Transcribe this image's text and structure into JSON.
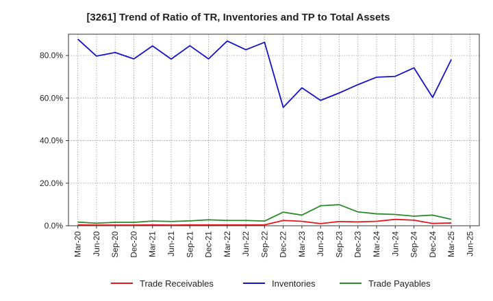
{
  "chart_data": {
    "type": "line",
    "title": "[3261]  Trend of Ratio of TR, Inventories and TP to Total Assets",
    "xlabel": "",
    "ylabel": "",
    "ylim": [
      0,
      90
    ],
    "y_ticks": [
      0,
      20,
      40,
      60,
      80
    ],
    "y_tick_labels": [
      "0.0%",
      "20.0%",
      "40.0%",
      "60.0%",
      "80.0%"
    ],
    "x_tick_labels": [
      "Mar-20",
      "Jun-20",
      "Sep-20",
      "Dec-20",
      "Mar-21",
      "Jun-21",
      "Sep-21",
      "Dec-21",
      "Mar-22",
      "Jun-22",
      "Sep-22",
      "Dec-22",
      "Mar-23",
      "Jun-23",
      "Sep-23",
      "Dec-23",
      "Mar-24",
      "Jun-24",
      "Sep-24",
      "Dec-24",
      "Mar-25",
      "Jun-25"
    ],
    "categories": [
      "Mar-20",
      "Jun-20",
      "Sep-20",
      "Dec-20",
      "Mar-21",
      "Jun-21",
      "Sep-21",
      "Dec-21",
      "Mar-22",
      "Jun-22",
      "Sep-22",
      "Dec-22",
      "Mar-23",
      "Jun-23",
      "Sep-23",
      "Dec-23",
      "Mar-24",
      "Jun-24",
      "Sep-24",
      "Dec-24",
      "Mar-25"
    ],
    "grid": true,
    "legend_position": "bottom",
    "series": [
      {
        "name": "Trade Receivables",
        "color": "#e8141b",
        "values": [
          0.4,
          0.3,
          0.3,
          0.3,
          0.4,
          0.3,
          0.4,
          0.4,
          0.4,
          0.4,
          0.4,
          2.5,
          2.1,
          1.0,
          2.0,
          1.8,
          2.1,
          3.0,
          2.6,
          1.1,
          1.3
        ]
      },
      {
        "name": "Inventories",
        "color": "#1212cc",
        "values": [
          87.7,
          79.7,
          81.4,
          78.4,
          84.5,
          78.3,
          84.6,
          78.4,
          86.8,
          82.7,
          86.2,
          55.6,
          64.8,
          58.9,
          62.4,
          66.3,
          69.8,
          70.2,
          74.2,
          60.3,
          78.1
        ]
      },
      {
        "name": "Trade Payables",
        "color": "#2a8a2a",
        "values": [
          1.7,
          1.2,
          1.6,
          1.6,
          2.2,
          2.0,
          2.3,
          2.8,
          2.5,
          2.5,
          2.2,
          6.4,
          5.0,
          9.4,
          9.9,
          6.5,
          5.6,
          5.3,
          4.5,
          5.0,
          3.0
        ]
      }
    ]
  }
}
